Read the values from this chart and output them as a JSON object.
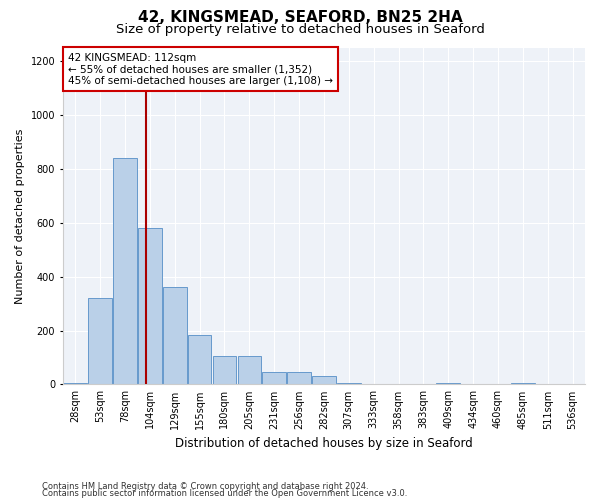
{
  "title1": "42, KINGSMEAD, SEAFORD, BN25 2HA",
  "title2": "Size of property relative to detached houses in Seaford",
  "xlabel": "Distribution of detached houses by size in Seaford",
  "ylabel": "Number of detached properties",
  "bar_labels": [
    "28sqm",
    "53sqm",
    "78sqm",
    "104sqm",
    "129sqm",
    "155sqm",
    "180sqm",
    "205sqm",
    "231sqm",
    "256sqm",
    "282sqm",
    "307sqm",
    "333sqm",
    "358sqm",
    "383sqm",
    "409sqm",
    "434sqm",
    "460sqm",
    "485sqm",
    "511sqm",
    "536sqm"
  ],
  "bar_heights": [
    5,
    320,
    840,
    580,
    360,
    185,
    105,
    105,
    45,
    45,
    30,
    5,
    0,
    0,
    0,
    5,
    0,
    0,
    5,
    0,
    0
  ],
  "bar_color": "#bad0e8",
  "bar_edge_color": "#6699cc",
  "red_line_color": "#aa0000",
  "annotation_text": "42 KINGSMEAD: 112sqm\n← 55% of detached houses are smaller (1,352)\n45% of semi-detached houses are larger (1,108) →",
  "annotation_box_color": "#ffffff",
  "annotation_box_edge": "#cc0000",
  "background_color": "#eef2f8",
  "ylim": [
    0,
    1250
  ],
  "yticks": [
    0,
    200,
    400,
    600,
    800,
    1000,
    1200
  ],
  "footnote1": "Contains HM Land Registry data © Crown copyright and database right 2024.",
  "footnote2": "Contains public sector information licensed under the Open Government Licence v3.0.",
  "title1_fontsize": 11,
  "title2_fontsize": 9.5,
  "xlabel_fontsize": 8.5,
  "ylabel_fontsize": 8,
  "tick_fontsize": 7,
  "footnote_fontsize": 6
}
